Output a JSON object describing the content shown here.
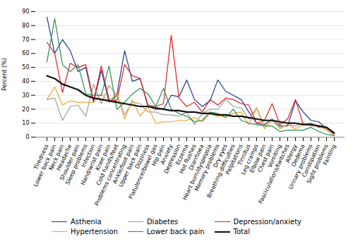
{
  "chart_data": {
    "type": "line",
    "categories": [
      "Tiredness",
      "Lower back pain",
      "Neck pain",
      "Headache",
      "Shoulder pain",
      "Sleep problems",
      "Infection",
      "Hand/wrist pain",
      "Knee pain",
      "Cold hands/feet",
      "Problems concentrating",
      "Ankle/foot pain",
      "Upper back pain",
      "Dizziness",
      "Flatulence/bowel gas",
      "Hip pain",
      "Anxiety",
      "Depression",
      "Eczema",
      "Hot flushes",
      "Diarrhoea",
      "Heart burn/dyspepsia",
      "Memory problems",
      "Dry eyes",
      "Breathing difficulties",
      "Palpitations",
      "Tinnitus",
      "Leg cramps",
      "Elbow pain",
      "Chest pain",
      "Vomiting",
      "Fasciculations/twitches",
      "Allergy",
      "Oedema",
      "Urinary problems",
      "Constipation",
      "Sight problems",
      "Fainting"
    ],
    "series": [
      {
        "name": "Asthenia",
        "color": "#1c3a8c",
        "values": [
          86,
          60,
          70,
          62,
          47,
          50,
          25,
          48,
          25,
          30,
          62,
          40,
          42,
          22,
          20,
          20,
          30,
          29,
          41,
          27,
          22,
          26,
          41,
          33,
          30,
          27,
          18,
          10,
          9,
          13,
          8,
          8,
          26,
          18,
          12,
          11,
          6,
          2
        ]
      },
      {
        "name": "Diabetes",
        "color": "#9e9e9e",
        "values": [
          27,
          28,
          12,
          22,
          23,
          15,
          38,
          24,
          37,
          30,
          16,
          25,
          24,
          18,
          18,
          16,
          16,
          15,
          18,
          9,
          17,
          20,
          20,
          27,
          22,
          21,
          13,
          21,
          8,
          13,
          7,
          9,
          8,
          10,
          8,
          8,
          6,
          2
        ]
      },
      {
        "name": "Depression/anxiety",
        "color": "#e02020",
        "values": [
          68,
          60,
          32,
          53,
          50,
          52,
          26,
          51,
          27,
          26,
          52,
          44,
          42,
          23,
          22,
          24,
          73,
          28,
          22,
          25,
          18,
          27,
          23,
          28,
          27,
          24,
          23,
          10,
          12,
          24,
          9,
          13,
          27,
          9,
          10,
          7,
          7,
          3
        ]
      },
      {
        "name": "Hypertension",
        "color": "#f5a623",
        "values": [
          27,
          36,
          23,
          26,
          25,
          25,
          25,
          31,
          25,
          32,
          13,
          27,
          15,
          22,
          10,
          11,
          11,
          12,
          12,
          14,
          11,
          17,
          15,
          15,
          17,
          18,
          9,
          21,
          6,
          12,
          6,
          9,
          6,
          9,
          9,
          8,
          5,
          1
        ]
      },
      {
        "name": "Lower back pain",
        "color": "#2e8b57",
        "values": [
          54,
          85,
          52,
          47,
          52,
          31,
          30,
          30,
          51,
          20,
          25,
          31,
          35,
          31,
          22,
          35,
          20,
          17,
          15,
          11,
          12,
          18,
          17,
          14,
          20,
          12,
          10,
          9,
          8,
          8,
          4,
          5,
          5,
          5,
          7,
          4,
          2,
          1
        ]
      },
      {
        "name": "Total",
        "color": "#111111",
        "values": [
          44,
          42,
          38,
          36,
          34,
          30,
          28,
          27,
          26,
          25,
          24,
          23,
          22,
          22,
          21,
          20,
          19,
          19,
          18,
          18,
          17,
          17,
          16,
          16,
          15,
          15,
          14,
          13,
          12,
          12,
          11,
          10,
          10,
          9,
          9,
          8,
          7,
          3
        ]
      }
    ],
    "ylabel": "Percent (%)",
    "ylim": [
      0,
      90
    ],
    "yticks": [
      0,
      10,
      20,
      30,
      40,
      50,
      60,
      70,
      80,
      90
    ],
    "grid": true,
    "legend": "bottom"
  }
}
